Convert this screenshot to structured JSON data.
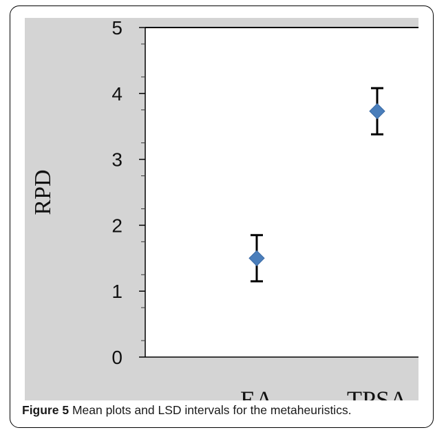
{
  "chart_data": {
    "type": "scatter",
    "ylabel": "RPD",
    "ylim": [
      0,
      5
    ],
    "yticks": [
      0,
      1,
      2,
      3,
      4,
      5
    ],
    "categories": [
      "EA",
      "TPSA"
    ],
    "series": [
      {
        "means": [
          1.5,
          3.73
        ],
        "lower": [
          1.15,
          3.38
        ],
        "upper": [
          1.85,
          4.08
        ]
      }
    ],
    "grid": false,
    "marker_color": "#4a7ebb",
    "errorbar_color": "#000000",
    "background_color": "#d4d4d4"
  },
  "caption": {
    "label": "Figure 5",
    "text": " Mean plots and LSD intervals for the metaheuristics."
  }
}
